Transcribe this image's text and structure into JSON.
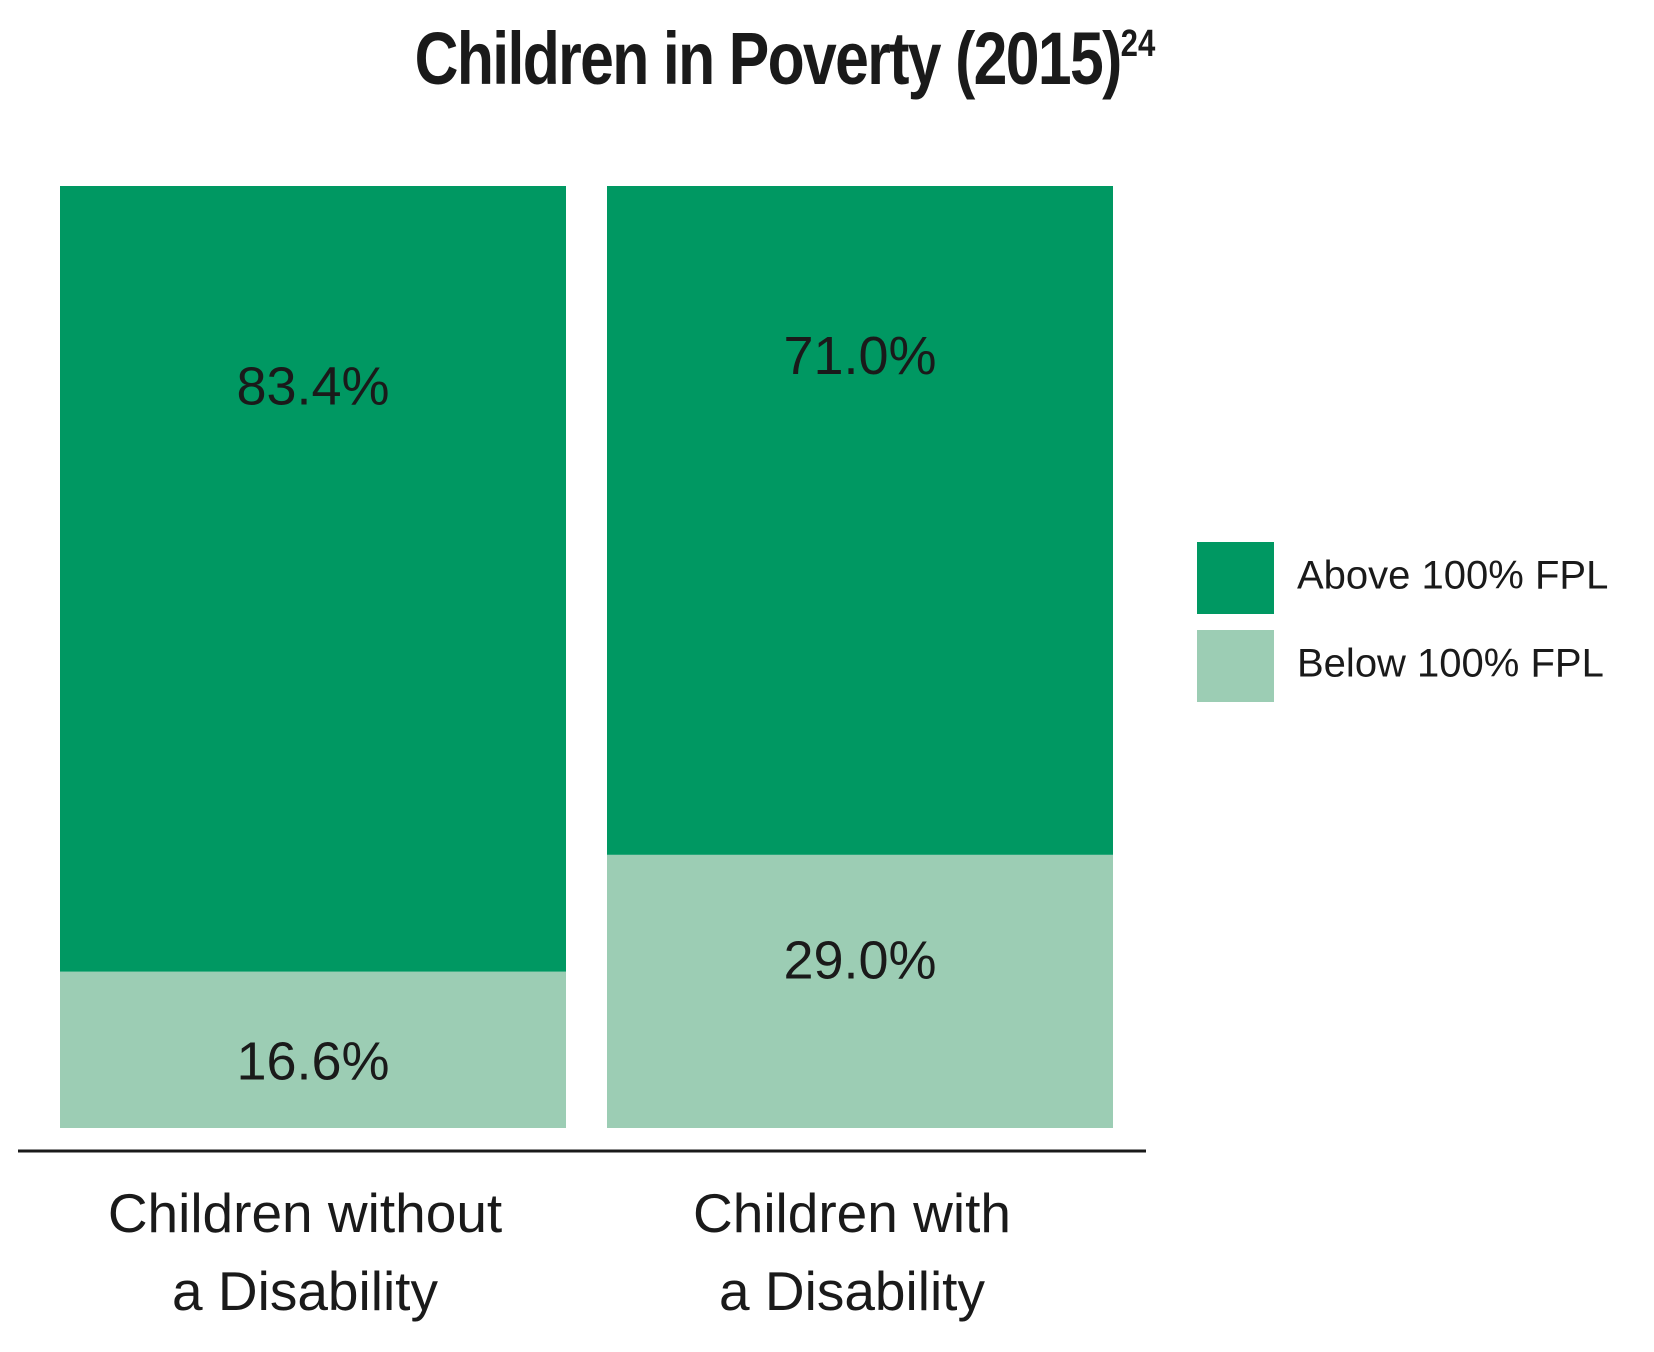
{
  "chart_data": {
    "type": "bar",
    "stacked": true,
    "title": "Children in Poverty (2015)",
    "title_superscript": "24",
    "categories": [
      [
        "Children without",
        "a Disability"
      ],
      [
        "Children with",
        "a Disability"
      ]
    ],
    "series": [
      {
        "name": "Above 100% FPL",
        "color": "#009862",
        "values": [
          83.4,
          71.0
        ],
        "labels": [
          "83.4%",
          "71.0%"
        ]
      },
      {
        "name": "Below 100% FPL",
        "color": "#9ccdb4",
        "values": [
          16.6,
          29.0
        ],
        "labels": [
          "16.6%",
          "29.0%"
        ]
      }
    ],
    "ylim": [
      0,
      100
    ],
    "xlabel": "",
    "ylabel": "",
    "grid": false,
    "legend": "right"
  }
}
